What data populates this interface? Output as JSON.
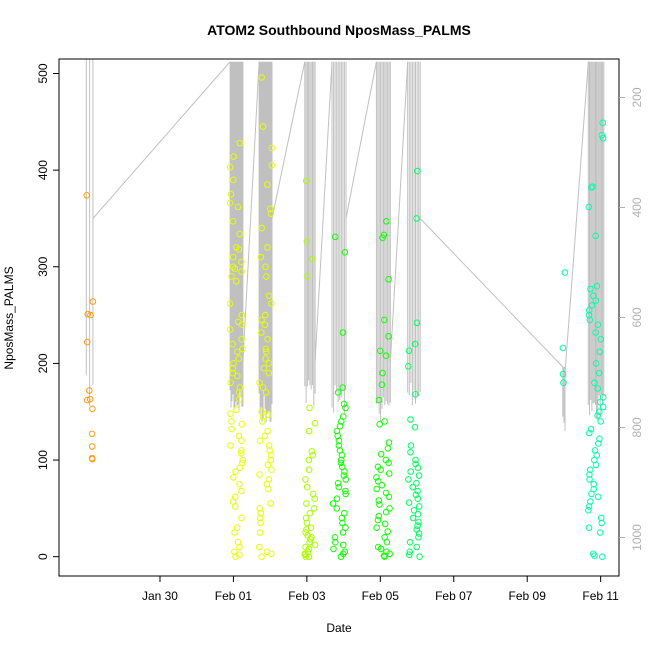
{
  "chart_data": {
    "type": "scatter",
    "title": "ATOM2 Southbound NposMass_PALMS",
    "xlabel": "Date",
    "ylabel": "NposMass_PALMS",
    "xlim": [
      "2017-01-27T06:00",
      "2017-02-11T12:00"
    ],
    "ylim": [
      -20,
      515
    ],
    "x_ticks": [
      {
        "label": "Jan 30",
        "value": "2017-01-30T00:00"
      },
      {
        "label": "Feb 01",
        "value": "2017-02-01T00:00"
      },
      {
        "label": "Feb 03",
        "value": "2017-02-03T00:00"
      },
      {
        "label": "Feb 05",
        "value": "2017-02-05T00:00"
      },
      {
        "label": "Feb 07",
        "value": "2017-02-07T00:00"
      },
      {
        "label": "Feb 09",
        "value": "2017-02-09T00:00"
      },
      {
        "label": "Feb 11",
        "value": "2017-02-11T00:00"
      }
    ],
    "y_ticks": [
      0,
      100,
      200,
      300,
      400,
      500
    ],
    "right_axis": {
      "description": "secondary axis (pressure, reversed), drawn in grey",
      "ticks": [
        200,
        400,
        600,
        800,
        1000
      ],
      "ylim": [
        1070,
        130
      ]
    },
    "colors": {
      "orange": "#ff9a10",
      "yellow": "#e6ff00",
      "lime": "#a8ff00",
      "green": "#10ff00",
      "mint": "#00ff60",
      "aqua": "#00ffa8",
      "grey": "#c0c0c0",
      "axis": "#000000"
    },
    "series": [
      {
        "color": "orange",
        "time": "2017-01-28T02:00",
        "spread": 0.18,
        "values": [
          374,
          264,
          251,
          250,
          222,
          172,
          163,
          162,
          153,
          127,
          114,
          102,
          101
        ]
      },
      {
        "color": "yellow",
        "time": "2017-02-01T02:00",
        "spread": 0.35,
        "values": [
          428,
          414,
          403,
          390,
          375,
          366,
          362,
          347,
          334,
          320,
          318,
          310,
          305,
          300,
          298,
          295,
          290,
          285,
          262,
          250,
          243,
          240,
          235,
          225,
          220,
          215,
          212,
          205,
          200,
          195,
          190,
          187,
          180,
          175,
          170,
          163,
          152,
          148,
          140,
          137,
          132,
          125,
          120,
          115,
          110,
          107,
          100,
          97,
          92,
          88,
          82,
          75,
          68,
          62,
          57,
          52,
          40,
          30,
          25,
          15,
          10,
          5,
          2,
          0
        ]
      },
      {
        "color": "yellow",
        "time": "2017-02-01T21:00",
        "spread": 0.35,
        "values": [
          496,
          445,
          423,
          405,
          385,
          360,
          355,
          340,
          320,
          310,
          300,
          290,
          270,
          262,
          250,
          245,
          240,
          232,
          225,
          215,
          212,
          205,
          200,
          195,
          190,
          180,
          175,
          170,
          150,
          147,
          145,
          140,
          130,
          125,
          120,
          115,
          110,
          105,
          100,
          95,
          90,
          85,
          80,
          75,
          70,
          55,
          50,
          45,
          40,
          35,
          25,
          10,
          5,
          3,
          0
        ]
      },
      {
        "color": "lime",
        "time": "2017-02-03T02:00",
        "spread": 0.28,
        "values": [
          389,
          326,
          308,
          290,
          154,
          138,
          130,
          109,
          105,
          100,
          90,
          80,
          72,
          65,
          60,
          55,
          50,
          45,
          40,
          35,
          30,
          28,
          25,
          22,
          20,
          18,
          15,
          12,
          10,
          8,
          5,
          3,
          2,
          0,
          0
        ]
      },
      {
        "color": "green",
        "time": "2017-02-03T21:00",
        "spread": 0.38,
        "values": [
          331,
          315,
          232,
          175,
          170,
          158,
          154,
          145,
          140,
          135,
          130,
          125,
          120,
          115,
          110,
          105,
          100,
          97,
          93,
          88,
          84,
          80,
          76,
          72,
          68,
          65,
          60,
          55,
          50,
          45,
          40,
          35,
          30,
          25,
          20,
          15,
          12,
          8,
          5,
          3,
          0
        ]
      },
      {
        "color": "green",
        "time": "2017-02-05T02:00",
        "spread": 0.38,
        "values": [
          347,
          333,
          330,
          287,
          245,
          228,
          213,
          208,
          190,
          178,
          162,
          140,
          137,
          118,
          112,
          106,
          100,
          97,
          93,
          90,
          86,
          82,
          78,
          74,
          70,
          66,
          62,
          58,
          54,
          50,
          46,
          42,
          38,
          34,
          30,
          26,
          20,
          15,
          10,
          8,
          5,
          3,
          1,
          0
        ]
      },
      {
        "color": "mint",
        "time": "2017-02-05T22:00",
        "spread": 0.34,
        "values": [
          399,
          350,
          242,
          220,
          213,
          197,
          168,
          142,
          134,
          115,
          108,
          100,
          96,
          92,
          88,
          84,
          80,
          76,
          72,
          68,
          64,
          60,
          56,
          52,
          48,
          44,
          40,
          36,
          32,
          28,
          24,
          20,
          15,
          10,
          5,
          2,
          0
        ]
      },
      {
        "color": "aqua",
        "time": "2017-02-10T00:00",
        "spread": 0.06,
        "values": [
          294,
          216,
          189,
          180
        ]
      },
      {
        "color": "aqua",
        "time": "2017-02-10T21:00",
        "spread": 0.42,
        "values": [
          449,
          436,
          433,
          383,
          382,
          362,
          332,
          280,
          277,
          270,
          265,
          260,
          255,
          250,
          245,
          240,
          232,
          225,
          212,
          200,
          190,
          180,
          174,
          165,
          160,
          155,
          150,
          146,
          140,
          132,
          128,
          122,
          117,
          110,
          105,
          100,
          95,
          90,
          85,
          80,
          75,
          70,
          65,
          62,
          57,
          52,
          48,
          40,
          35,
          30,
          25,
          3,
          1,
          0
        ]
      }
    ]
  }
}
